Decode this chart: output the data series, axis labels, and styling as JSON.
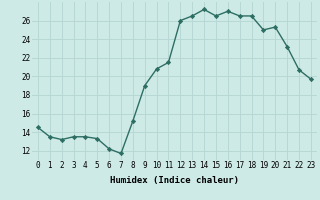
{
  "x": [
    0,
    1,
    2,
    3,
    4,
    5,
    6,
    7,
    8,
    9,
    10,
    11,
    12,
    13,
    14,
    15,
    16,
    17,
    18,
    19,
    20,
    21,
    22,
    23
  ],
  "y": [
    14.5,
    13.5,
    13.2,
    13.5,
    13.5,
    13.3,
    12.2,
    11.7,
    15.2,
    19.0,
    20.8,
    21.5,
    26.0,
    26.5,
    27.2,
    26.5,
    27.0,
    26.5,
    26.5,
    25.0,
    25.3,
    23.2,
    20.7,
    19.7
  ],
  "line_color": "#2d6e63",
  "marker": "D",
  "marker_size": 2.2,
  "bg_color": "#ceeae7",
  "grid_color": "#b8d8d5",
  "xlabel": "Humidex (Indice chaleur)",
  "ylabel": "",
  "xlim": [
    -0.5,
    23.5
  ],
  "ylim": [
    11,
    28
  ],
  "yticks": [
    12,
    14,
    16,
    18,
    20,
    22,
    24,
    26
  ],
  "xticks": [
    0,
    1,
    2,
    3,
    4,
    5,
    6,
    7,
    8,
    9,
    10,
    11,
    12,
    13,
    14,
    15,
    16,
    17,
    18,
    19,
    20,
    21,
    22,
    23
  ],
  "xlabel_fontsize": 6.5,
  "tick_fontsize": 5.5,
  "line_width": 1.0
}
